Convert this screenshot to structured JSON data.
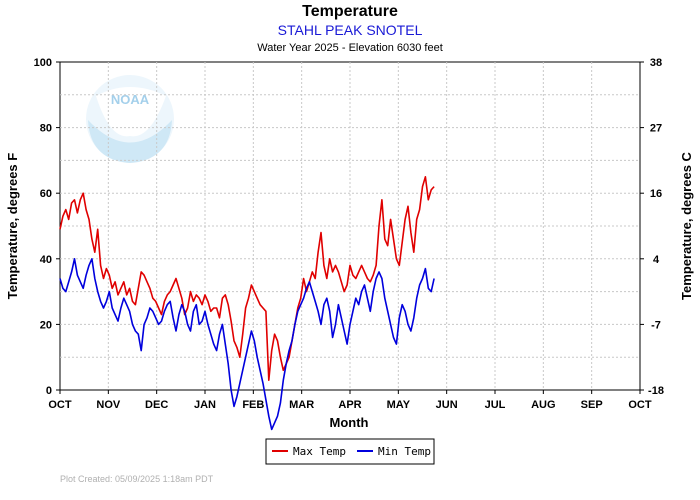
{
  "logo": {
    "text": "NOAA",
    "color": "#5aaadc"
  },
  "credit": "Plot Created: 05/09/2025 1:18am PDT",
  "chart_data": {
    "type": "line",
    "title": "Temperature",
    "subtitle": "STAHL PEAK SNOTEL",
    "subtitle2": "Water Year 2025 -  Elevation 6030 feet",
    "xlabel": "Month",
    "ylabel": "Temperature, degrees F",
    "ylabel_right": "Temperature, degrees C",
    "ylim": [
      0,
      100
    ],
    "yticks": [
      0,
      20,
      40,
      60,
      80,
      100
    ],
    "yticks_right_labels": [
      "-18",
      "-7",
      "4",
      "16",
      "27",
      "38"
    ],
    "yticks_right_f": [
      0,
      20,
      40,
      60,
      80,
      100
    ],
    "xlim": [
      0,
      12
    ],
    "xticks": [
      "OCT",
      "NOV",
      "DEC",
      "JAN",
      "FEB",
      "MAR",
      "APR",
      "MAY",
      "JUN",
      "JUL",
      "AUG",
      "SEP",
      "OCT"
    ],
    "grid": true,
    "legend_position": "bottom-center",
    "series": [
      {
        "name": "Max Temp",
        "color": "#e00000",
        "points": [
          [
            0.0,
            49
          ],
          [
            0.06,
            53
          ],
          [
            0.12,
            55
          ],
          [
            0.18,
            52
          ],
          [
            0.24,
            57
          ],
          [
            0.3,
            58
          ],
          [
            0.36,
            54
          ],
          [
            0.42,
            58
          ],
          [
            0.48,
            60
          ],
          [
            0.54,
            55
          ],
          [
            0.6,
            52
          ],
          [
            0.66,
            46
          ],
          [
            0.72,
            42
          ],
          [
            0.78,
            49
          ],
          [
            0.84,
            38
          ],
          [
            0.9,
            34
          ],
          [
            0.96,
            37
          ],
          [
            1.02,
            35
          ],
          [
            1.08,
            31
          ],
          [
            1.14,
            33
          ],
          [
            1.2,
            29
          ],
          [
            1.26,
            31
          ],
          [
            1.32,
            33
          ],
          [
            1.38,
            29
          ],
          [
            1.44,
            31
          ],
          [
            1.5,
            27
          ],
          [
            1.56,
            26
          ],
          [
            1.62,
            31
          ],
          [
            1.68,
            36
          ],
          [
            1.74,
            35
          ],
          [
            1.8,
            33
          ],
          [
            1.86,
            31
          ],
          [
            1.92,
            28
          ],
          [
            1.98,
            27
          ],
          [
            2.04,
            25
          ],
          [
            2.1,
            23
          ],
          [
            2.16,
            27
          ],
          [
            2.22,
            29
          ],
          [
            2.28,
            30
          ],
          [
            2.34,
            32
          ],
          [
            2.4,
            34
          ],
          [
            2.46,
            31
          ],
          [
            2.52,
            28
          ],
          [
            2.58,
            23
          ],
          [
            2.64,
            25
          ],
          [
            2.7,
            30
          ],
          [
            2.76,
            27
          ],
          [
            2.82,
            29
          ],
          [
            2.88,
            28
          ],
          [
            2.94,
            26
          ],
          [
            3.0,
            29
          ],
          [
            3.06,
            27
          ],
          [
            3.12,
            24
          ],
          [
            3.18,
            25
          ],
          [
            3.24,
            25
          ],
          [
            3.3,
            22
          ],
          [
            3.36,
            28
          ],
          [
            3.42,
            29
          ],
          [
            3.48,
            26
          ],
          [
            3.54,
            21
          ],
          [
            3.6,
            15
          ],
          [
            3.66,
            13
          ],
          [
            3.72,
            10
          ],
          [
            3.78,
            17
          ],
          [
            3.84,
            25
          ],
          [
            3.9,
            28
          ],
          [
            3.96,
            32
          ],
          [
            4.02,
            30
          ],
          [
            4.08,
            28
          ],
          [
            4.14,
            26
          ],
          [
            4.2,
            25
          ],
          [
            4.26,
            24
          ],
          [
            4.32,
            3
          ],
          [
            4.38,
            12
          ],
          [
            4.44,
            17
          ],
          [
            4.5,
            15
          ],
          [
            4.56,
            10
          ],
          [
            4.62,
            6
          ],
          [
            4.68,
            8
          ],
          [
            4.74,
            10
          ],
          [
            4.8,
            15
          ],
          [
            4.86,
            20
          ],
          [
            4.92,
            25
          ],
          [
            4.98,
            28
          ],
          [
            5.04,
            34
          ],
          [
            5.1,
            30
          ],
          [
            5.16,
            33
          ],
          [
            5.22,
            36
          ],
          [
            5.28,
            34
          ],
          [
            5.34,
            42
          ],
          [
            5.4,
            48
          ],
          [
            5.46,
            38
          ],
          [
            5.52,
            34
          ],
          [
            5.58,
            40
          ],
          [
            5.64,
            36
          ],
          [
            5.7,
            38
          ],
          [
            5.76,
            36
          ],
          [
            5.82,
            33
          ],
          [
            5.88,
            30
          ],
          [
            5.94,
            32
          ],
          [
            6.0,
            38
          ],
          [
            6.06,
            35
          ],
          [
            6.12,
            34
          ],
          [
            6.18,
            36
          ],
          [
            6.24,
            38
          ],
          [
            6.3,
            36
          ],
          [
            6.36,
            34
          ],
          [
            6.42,
            33
          ],
          [
            6.48,
            35
          ],
          [
            6.54,
            38
          ],
          [
            6.6,
            50
          ],
          [
            6.66,
            58
          ],
          [
            6.72,
            46
          ],
          [
            6.78,
            44
          ],
          [
            6.84,
            52
          ],
          [
            6.9,
            46
          ],
          [
            6.96,
            40
          ],
          [
            7.02,
            38
          ],
          [
            7.08,
            45
          ],
          [
            7.14,
            52
          ],
          [
            7.2,
            56
          ],
          [
            7.26,
            48
          ],
          [
            7.32,
            42
          ],
          [
            7.38,
            52
          ],
          [
            7.44,
            55
          ],
          [
            7.5,
            62
          ],
          [
            7.56,
            65
          ],
          [
            7.62,
            58
          ],
          [
            7.68,
            61
          ],
          [
            7.74,
            62
          ]
        ]
      },
      {
        "name": "Min Temp",
        "color": "#0000dd",
        "points": [
          [
            0.0,
            34
          ],
          [
            0.06,
            31
          ],
          [
            0.12,
            30
          ],
          [
            0.18,
            33
          ],
          [
            0.24,
            36
          ],
          [
            0.3,
            40
          ],
          [
            0.36,
            35
          ],
          [
            0.42,
            33
          ],
          [
            0.48,
            31
          ],
          [
            0.54,
            35
          ],
          [
            0.6,
            38
          ],
          [
            0.66,
            40
          ],
          [
            0.72,
            34
          ],
          [
            0.78,
            30
          ],
          [
            0.84,
            27
          ],
          [
            0.9,
            25
          ],
          [
            0.96,
            27
          ],
          [
            1.02,
            30
          ],
          [
            1.08,
            25
          ],
          [
            1.14,
            23
          ],
          [
            1.2,
            21
          ],
          [
            1.26,
            25
          ],
          [
            1.32,
            28
          ],
          [
            1.38,
            26
          ],
          [
            1.44,
            24
          ],
          [
            1.5,
            20
          ],
          [
            1.56,
            18
          ],
          [
            1.62,
            17
          ],
          [
            1.68,
            12
          ],
          [
            1.74,
            20
          ],
          [
            1.8,
            22
          ],
          [
            1.86,
            25
          ],
          [
            1.92,
            24
          ],
          [
            1.98,
            22
          ],
          [
            2.04,
            20
          ],
          [
            2.1,
            21
          ],
          [
            2.16,
            24
          ],
          [
            2.22,
            26
          ],
          [
            2.28,
            27
          ],
          [
            2.34,
            22
          ],
          [
            2.4,
            18
          ],
          [
            2.46,
            23
          ],
          [
            2.52,
            26
          ],
          [
            2.58,
            24
          ],
          [
            2.64,
            20
          ],
          [
            2.7,
            18
          ],
          [
            2.76,
            24
          ],
          [
            2.82,
            26
          ],
          [
            2.88,
            20
          ],
          [
            2.94,
            21
          ],
          [
            3.0,
            24
          ],
          [
            3.06,
            20
          ],
          [
            3.12,
            17
          ],
          [
            3.18,
            14
          ],
          [
            3.24,
            12
          ],
          [
            3.3,
            17
          ],
          [
            3.36,
            20
          ],
          [
            3.42,
            14
          ],
          [
            3.48,
            8
          ],
          [
            3.54,
            0
          ],
          [
            3.6,
            -5
          ],
          [
            3.66,
            -2
          ],
          [
            3.72,
            2
          ],
          [
            3.78,
            6
          ],
          [
            3.84,
            10
          ],
          [
            3.9,
            14
          ],
          [
            3.96,
            18
          ],
          [
            4.02,
            15
          ],
          [
            4.08,
            10
          ],
          [
            4.14,
            6
          ],
          [
            4.2,
            2
          ],
          [
            4.26,
            -3
          ],
          [
            4.32,
            -8
          ],
          [
            4.38,
            -12
          ],
          [
            4.44,
            -10
          ],
          [
            4.5,
            -8
          ],
          [
            4.56,
            -4
          ],
          [
            4.62,
            3
          ],
          [
            4.68,
            8
          ],
          [
            4.74,
            12
          ],
          [
            4.8,
            15
          ],
          [
            4.86,
            20
          ],
          [
            4.92,
            24
          ],
          [
            4.98,
            26
          ],
          [
            5.04,
            28
          ],
          [
            5.1,
            31
          ],
          [
            5.16,
            33
          ],
          [
            5.22,
            30
          ],
          [
            5.28,
            27
          ],
          [
            5.34,
            24
          ],
          [
            5.4,
            20
          ],
          [
            5.46,
            26
          ],
          [
            5.52,
            28
          ],
          [
            5.58,
            24
          ],
          [
            5.64,
            16
          ],
          [
            5.7,
            20
          ],
          [
            5.76,
            26
          ],
          [
            5.82,
            22
          ],
          [
            5.88,
            18
          ],
          [
            5.94,
            14
          ],
          [
            6.0,
            20
          ],
          [
            6.06,
            24
          ],
          [
            6.12,
            28
          ],
          [
            6.18,
            26
          ],
          [
            6.24,
            30
          ],
          [
            6.3,
            32
          ],
          [
            6.36,
            28
          ],
          [
            6.42,
            24
          ],
          [
            6.48,
            30
          ],
          [
            6.54,
            34
          ],
          [
            6.6,
            36
          ],
          [
            6.66,
            34
          ],
          [
            6.72,
            28
          ],
          [
            6.78,
            24
          ],
          [
            6.84,
            20
          ],
          [
            6.9,
            16
          ],
          [
            6.96,
            14
          ],
          [
            7.02,
            22
          ],
          [
            7.08,
            26
          ],
          [
            7.14,
            24
          ],
          [
            7.2,
            20
          ],
          [
            7.26,
            18
          ],
          [
            7.32,
            22
          ],
          [
            7.38,
            28
          ],
          [
            7.44,
            32
          ],
          [
            7.5,
            34
          ],
          [
            7.56,
            37
          ],
          [
            7.62,
            31
          ],
          [
            7.68,
            30
          ],
          [
            7.74,
            34
          ]
        ]
      }
    ]
  }
}
